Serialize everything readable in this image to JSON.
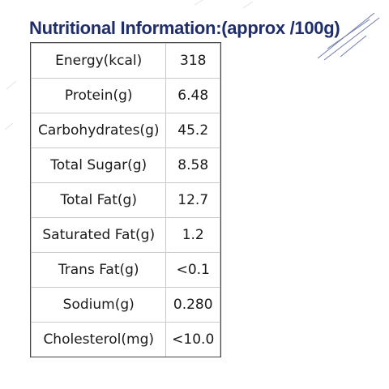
{
  "title": "Nutritional Information:(approx /100g)",
  "rows": [
    {
      "nutrient": "Energy(kcal)",
      "value": "318"
    },
    {
      "nutrient": "Protein(g)",
      "value": "6.48"
    },
    {
      "nutrient": "Carbohydrates(g)",
      "value": "45.2"
    },
    {
      "nutrient": "Total Sugar(g)",
      "value": "8.58"
    },
    {
      "nutrient": "Total Fat(g)",
      "value": "12.7"
    },
    {
      "nutrient": "Saturated Fat(g)",
      "value": "1.2"
    },
    {
      "nutrient": "Trans Fat(g)",
      "value": "<0.1"
    },
    {
      "nutrient": "Sodium(g)",
      "value": "0.280"
    },
    {
      "nutrient": "Cholesterol(mg)",
      "value": "<10.0"
    }
  ],
  "colors": {
    "title": "#1f2d6b",
    "text": "#1a1a1a",
    "border": "#c9c9c9"
  }
}
